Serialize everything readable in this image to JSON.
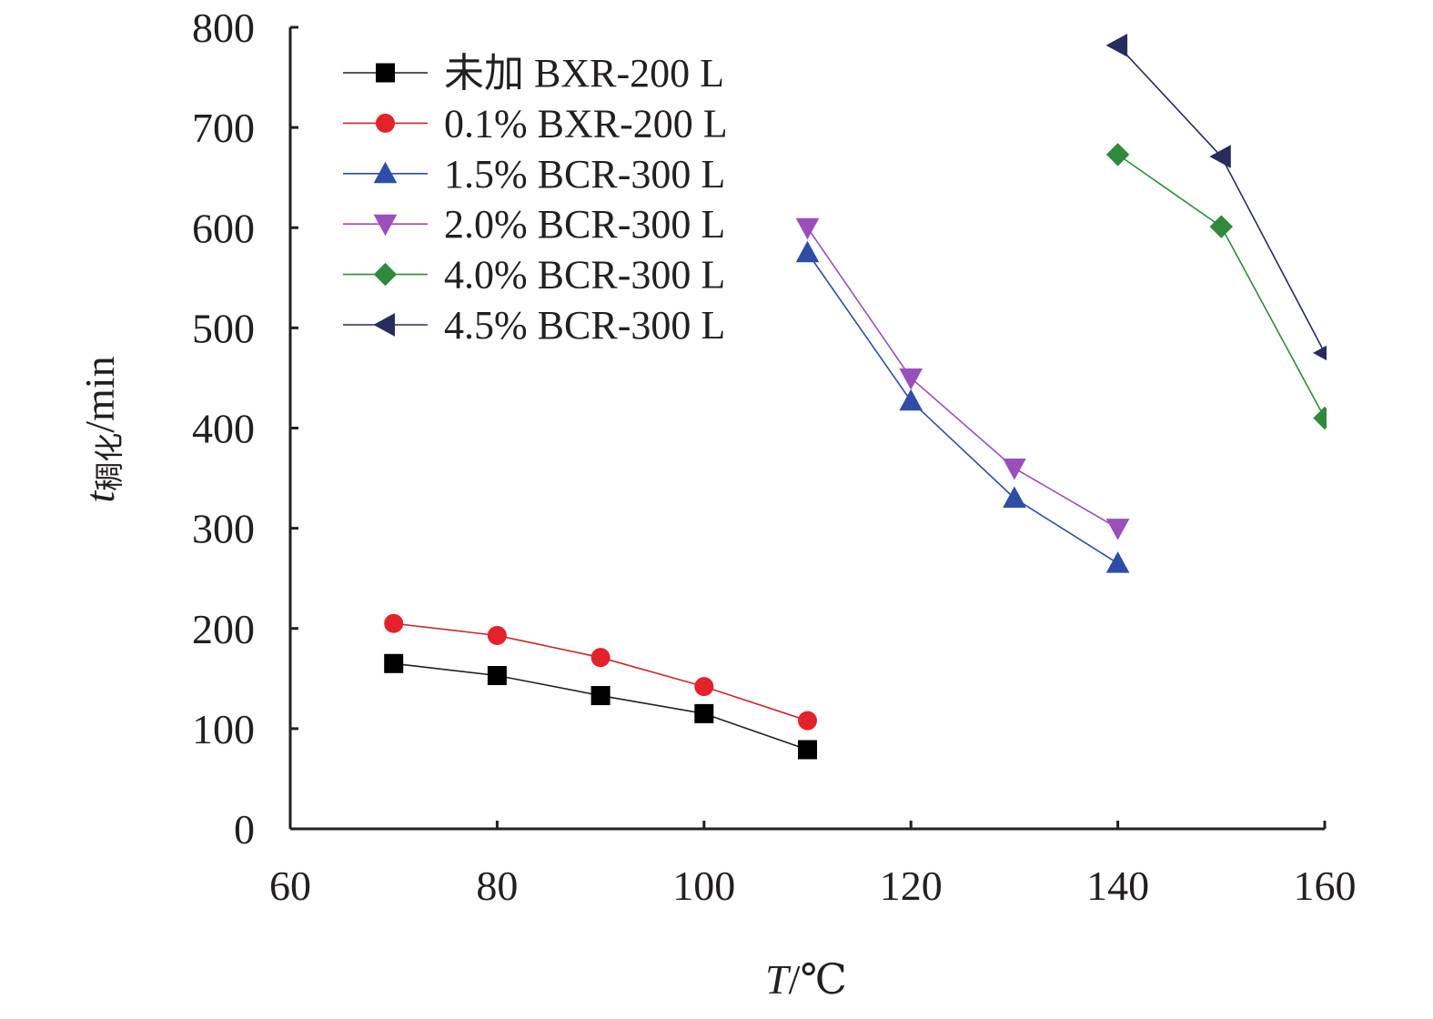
{
  "chart_data": {
    "type": "line",
    "title": "",
    "xlabel": {
      "var": "T",
      "unit": "/℃"
    },
    "ylabel": {
      "var": "t",
      "sub": "稠化",
      "unit": "/min"
    },
    "xlim": [
      60,
      160
    ],
    "ylim": [
      0,
      800
    ],
    "x_ticks": [
      60,
      80,
      100,
      120,
      140,
      160
    ],
    "y_ticks": [
      0,
      100,
      200,
      300,
      400,
      500,
      600,
      700,
      800
    ],
    "grid": false,
    "legend_position": "top-left",
    "series": [
      {
        "name": "未加 BXR-200 L",
        "marker": "square",
        "color": "#000000",
        "line_color": "#231f20",
        "x": [
          70,
          80,
          90,
          100,
          110
        ],
        "y": [
          165,
          153,
          133,
          115,
          79
        ]
      },
      {
        "name": "0.1% BXR-200 L",
        "marker": "circle",
        "color": "#e3222a",
        "line_color": "#c9272f",
        "x": [
          70,
          80,
          90,
          100,
          110
        ],
        "y": [
          205,
          193,
          171,
          142,
          108
        ]
      },
      {
        "name": "1.5% BCR-300 L",
        "marker": "triangle-up",
        "color": "#2e4ea5",
        "line_color": "#2e4ea5",
        "x": [
          110,
          120,
          130,
          140
        ],
        "y": [
          575,
          427,
          330,
          265
        ]
      },
      {
        "name": "2.0% BCR-300 L",
        "marker": "triangle-down",
        "color": "#9b4fba",
        "line_color": "#9b4fba",
        "x": [
          110,
          120,
          130,
          140
        ],
        "y": [
          600,
          450,
          360,
          300
        ]
      },
      {
        "name": "4.0% BCR-300 L",
        "marker": "diamond",
        "color": "#2f8a3c",
        "line_color": "#2f8a3c",
        "x": [
          140,
          150,
          160
        ],
        "y": [
          673,
          601,
          410
        ]
      },
      {
        "name": "4.5% BCR-300 L",
        "marker": "triangle-left",
        "color": "#272c5e",
        "line_color": "#272c5e",
        "x": [
          140,
          150,
          160
        ],
        "y": [
          782,
          671,
          475
        ]
      }
    ]
  }
}
